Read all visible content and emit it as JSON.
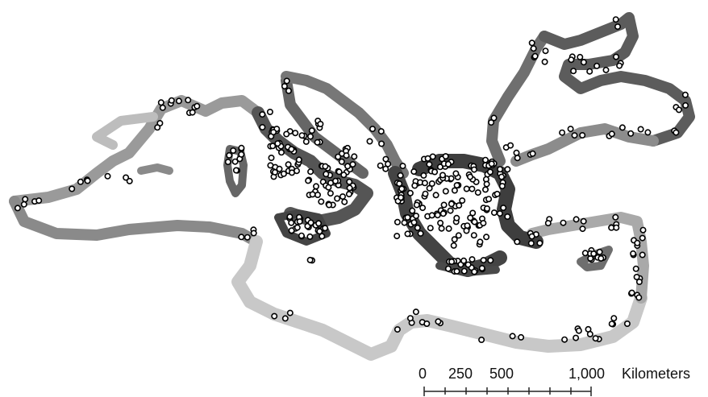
{
  "map": {
    "scale_bar": {
      "ticks": [
        "0",
        "250",
        "500",
        "1,000"
      ],
      "units": "Kilometers"
    },
    "colors": {
      "coast_light": "#c9c9c9",
      "coast_mid": "#8f8f8f",
      "coast_dark": "#4e4e4e",
      "site_fill": "#ffffff",
      "site_stroke": "#000000"
    }
  }
}
